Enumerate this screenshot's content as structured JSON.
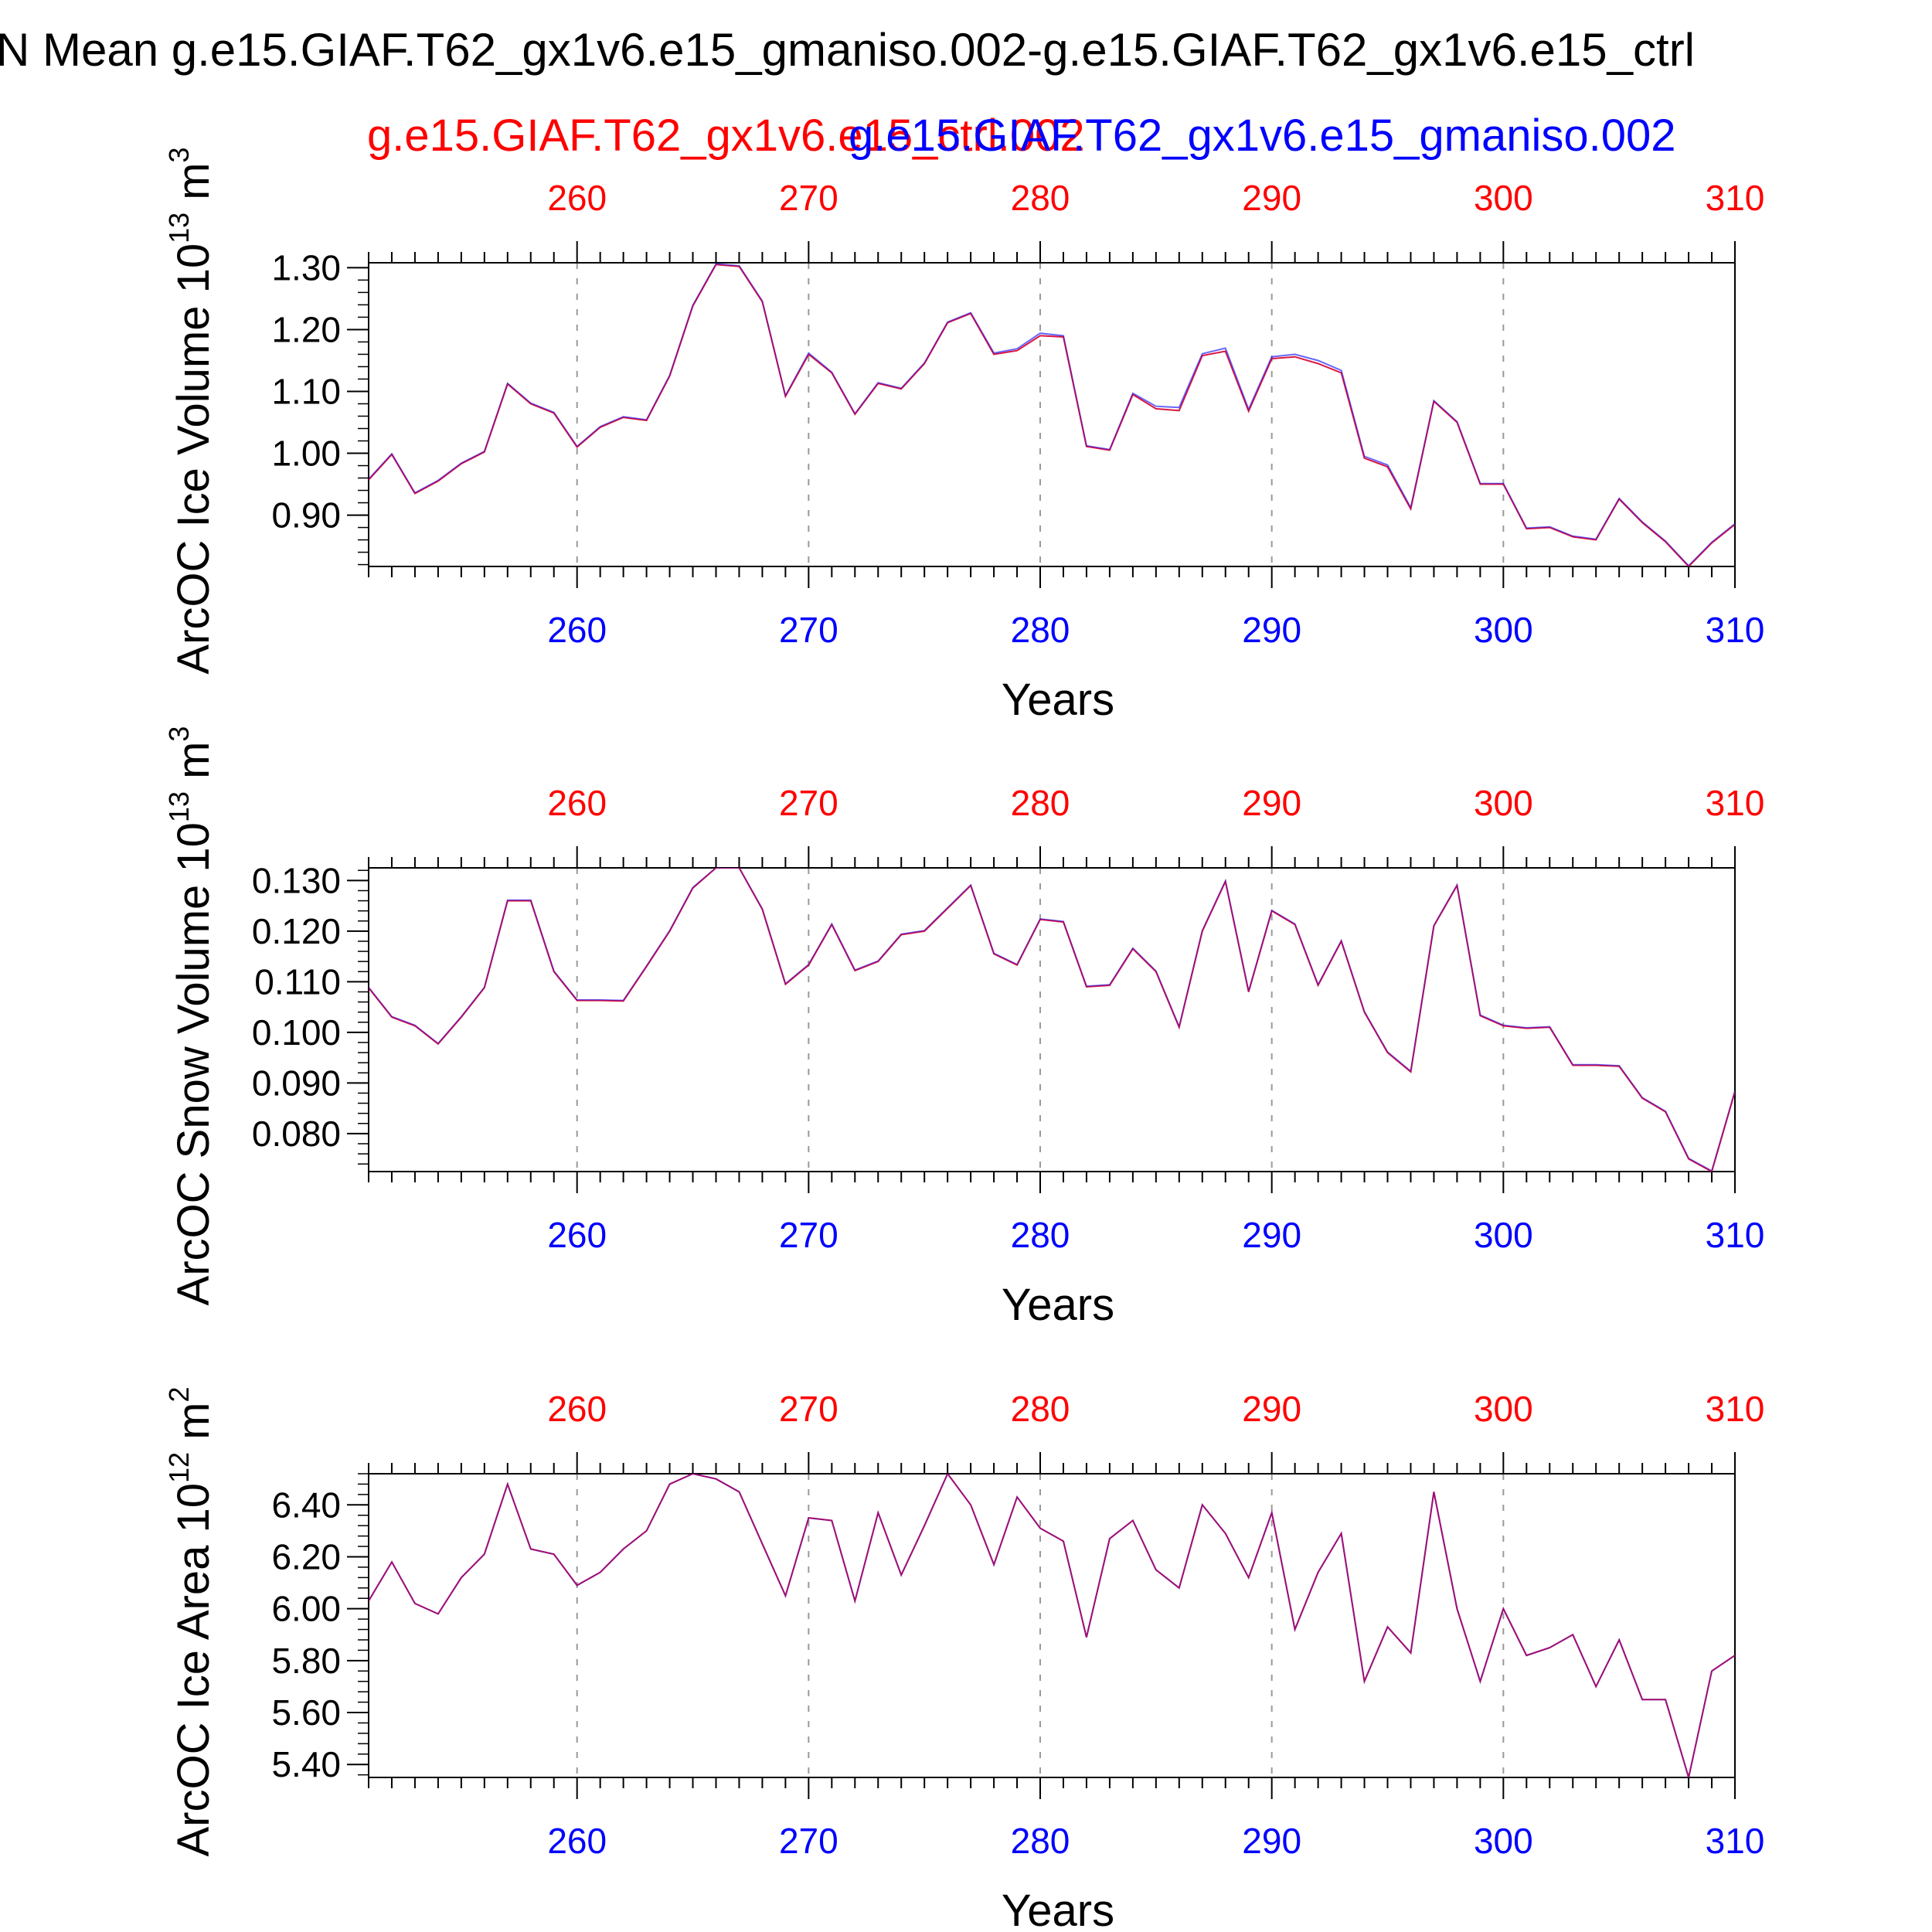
{
  "page_title": "N Mean g.e15.GIAF.T62_gx1v6.e15_gmaniso.002-g.e15.GIAF.T62_gx1v6.e15_ctrl",
  "legend": {
    "left": "g.e15.GIAF.T62_gx1v6.e15_ctrl.002",
    "right": "g.e15.GIAF.T62_gx1v6.e15_gmaniso.002"
  },
  "colors": {
    "ctrl": "#ff0000",
    "gmaniso": "#0000ff",
    "line": "#c0105a",
    "axis": "#000000",
    "grid": "#999999"
  },
  "chart_data": [
    {
      "type": "line",
      "name": "ice-volume",
      "ylabel_main": "ArcOC Ice Volume 10",
      "ylabel_exp": "13",
      "ylabel_unit": " m",
      "ylabel_unit_exp": "3",
      "xlabel": "Years",
      "xlim": [
        251,
        310
      ],
      "ylim": [
        0.817,
        1.308
      ],
      "yticks": [
        0.9,
        1.0,
        1.1,
        1.2,
        1.3
      ],
      "ytick_labels": [
        "0.90",
        "1.00",
        "1.10",
        "1.20",
        "1.30"
      ],
      "xticks": [
        260,
        270,
        280,
        290,
        300,
        310
      ],
      "xtick_labels": [
        "260",
        "270",
        "280",
        "290",
        "300",
        "310"
      ],
      "x": [
        251,
        252,
        253,
        254,
        255,
        256,
        257,
        258,
        259,
        260,
        261,
        262,
        263,
        264,
        265,
        266,
        267,
        268,
        269,
        270,
        271,
        272,
        273,
        274,
        275,
        276,
        277,
        278,
        279,
        280,
        281,
        282,
        283,
        284,
        285,
        286,
        287,
        288,
        289,
        290,
        291,
        292,
        293,
        294,
        295,
        296,
        297,
        298,
        299,
        300,
        301,
        302,
        303,
        304,
        305,
        306,
        307,
        308,
        309,
        310
      ],
      "series": [
        {
          "name": "g.e15.GIAF.T62_gx1v6.e15_ctrl.002",
          "values": [
            0.957,
            0.998,
            0.935,
            0.955,
            0.983,
            1.002,
            1.112,
            1.08,
            1.065,
            1.01,
            1.042,
            1.058,
            1.053,
            1.125,
            1.238,
            1.305,
            1.302,
            1.245,
            1.092,
            1.16,
            1.13,
            1.063,
            1.113,
            1.104,
            1.145,
            1.211,
            1.226,
            1.16,
            1.166,
            1.19,
            1.188,
            1.011,
            1.005,
            1.095,
            1.072,
            1.069,
            1.158,
            1.165,
            1.068,
            1.153,
            1.156,
            1.145,
            1.13,
            0.992,
            0.978,
            0.91,
            1.084,
            1.05,
            0.95,
            0.95,
            0.878,
            0.88,
            0.865,
            0.86,
            0.926,
            0.888,
            0.857,
            0.817,
            0.855,
            0.885
          ]
        },
        {
          "name": "g.e15.GIAF.T62_gx1v6.e15_gmaniso.002",
          "values": [
            0.958,
            0.999,
            0.936,
            0.956,
            0.984,
            1.003,
            1.113,
            1.081,
            1.066,
            1.011,
            1.043,
            1.059,
            1.054,
            1.126,
            1.239,
            1.306,
            1.303,
            1.246,
            1.093,
            1.162,
            1.131,
            1.064,
            1.114,
            1.105,
            1.146,
            1.212,
            1.227,
            1.162,
            1.169,
            1.194,
            1.19,
            1.012,
            1.006,
            1.097,
            1.076,
            1.074,
            1.161,
            1.17,
            1.071,
            1.156,
            1.16,
            1.15,
            1.134,
            0.995,
            0.981,
            0.912,
            1.085,
            1.051,
            0.951,
            0.951,
            0.879,
            0.881,
            0.866,
            0.861,
            0.927,
            0.889,
            0.858,
            0.818,
            0.856,
            0.886
          ]
        }
      ]
    },
    {
      "type": "line",
      "name": "snow-volume",
      "ylabel_main": "ArcOC Snow Volume 10",
      "ylabel_exp": "13",
      "ylabel_unit": " m",
      "ylabel_unit_exp": "3",
      "xlabel": "Years",
      "xlim": [
        251,
        310
      ],
      "ylim": [
        0.0725,
        0.1325
      ],
      "yticks": [
        0.08,
        0.09,
        0.1,
        0.11,
        0.12,
        0.13
      ],
      "ytick_labels": [
        "0.080",
        "0.090",
        "0.100",
        "0.110",
        "0.120",
        "0.130"
      ],
      "xticks": [
        260,
        270,
        280,
        290,
        300,
        310
      ],
      "xtick_labels": [
        "260",
        "270",
        "280",
        "290",
        "300",
        "310"
      ],
      "x": [
        251,
        252,
        253,
        254,
        255,
        256,
        257,
        258,
        259,
        260,
        261,
        262,
        263,
        264,
        265,
        266,
        267,
        268,
        269,
        270,
        271,
        272,
        273,
        274,
        275,
        276,
        277,
        278,
        279,
        280,
        281,
        282,
        283,
        284,
        285,
        286,
        287,
        288,
        289,
        290,
        291,
        292,
        293,
        294,
        295,
        296,
        297,
        298,
        299,
        300,
        301,
        302,
        303,
        304,
        305,
        306,
        307,
        308,
        309,
        310
      ],
      "series": [
        {
          "name": "g.e15.GIAF.T62_gx1v6.e15_ctrl.002",
          "values": [
            0.1088,
            0.103,
            0.1013,
            0.0977,
            0.103,
            0.1088,
            0.126,
            0.126,
            0.112,
            0.1063,
            0.1063,
            0.1062,
            0.113,
            0.12,
            0.1285,
            0.1325,
            0.1325,
            0.1243,
            0.1095,
            0.1133,
            0.1213,
            0.1122,
            0.114,
            0.1193,
            0.12,
            0.1245,
            0.129,
            0.1155,
            0.1133,
            0.1223,
            0.1218,
            0.109,
            0.1093,
            0.1165,
            0.112,
            0.101,
            0.12,
            0.1298,
            0.108,
            0.124,
            0.1213,
            0.1093,
            0.118,
            0.104,
            0.096,
            0.0922,
            0.121,
            0.129,
            0.1033,
            0.1013,
            0.1008,
            0.101,
            0.0935,
            0.0935,
            0.0933,
            0.087,
            0.0843,
            0.075,
            0.0725,
            0.0883
          ]
        },
        {
          "name": "g.e15.GIAF.T62_gx1v6.e15_gmaniso.002",
          "values": [
            0.1089,
            0.1031,
            0.1014,
            0.0978,
            0.1031,
            0.1089,
            0.1261,
            0.1261,
            0.1121,
            0.1064,
            0.1064,
            0.1063,
            0.1131,
            0.1201,
            0.1286,
            0.1325,
            0.1325,
            0.1244,
            0.1096,
            0.1134,
            0.1214,
            0.1123,
            0.1141,
            0.1194,
            0.1201,
            0.1246,
            0.1291,
            0.1156,
            0.1134,
            0.1224,
            0.1219,
            0.1091,
            0.1094,
            0.1166,
            0.1121,
            0.1011,
            0.1201,
            0.1299,
            0.1081,
            0.1241,
            0.1214,
            0.1094,
            0.1181,
            0.1041,
            0.0961,
            0.0923,
            0.1211,
            0.1291,
            0.1034,
            0.1014,
            0.1009,
            0.1011,
            0.0936,
            0.0936,
            0.0934,
            0.0871,
            0.0844,
            0.0751,
            0.0726,
            0.0884
          ]
        }
      ]
    },
    {
      "type": "line",
      "name": "ice-area",
      "ylabel_main": "ArcOC Ice Area 10",
      "ylabel_exp": "12",
      "ylabel_unit": " m",
      "ylabel_unit_exp": "2",
      "xlabel": "Years",
      "xlim": [
        251,
        310
      ],
      "ylim": [
        5.35,
        6.52
      ],
      "yticks": [
        5.4,
        5.6,
        5.8,
        6.0,
        6.2,
        6.4
      ],
      "ytick_labels": [
        "5.40",
        "5.60",
        "5.80",
        "6.00",
        "6.20",
        "6.40"
      ],
      "xticks": [
        260,
        270,
        280,
        290,
        300,
        310
      ],
      "xtick_labels": [
        "260",
        "270",
        "280",
        "290",
        "300",
        "310"
      ],
      "x": [
        251,
        252,
        253,
        254,
        255,
        256,
        257,
        258,
        259,
        260,
        261,
        262,
        263,
        264,
        265,
        266,
        267,
        268,
        269,
        270,
        271,
        272,
        273,
        274,
        275,
        276,
        277,
        278,
        279,
        280,
        281,
        282,
        283,
        284,
        285,
        286,
        287,
        288,
        289,
        290,
        291,
        292,
        293,
        294,
        295,
        296,
        297,
        298,
        299,
        300,
        301,
        302,
        303,
        304,
        305,
        306,
        307,
        308,
        309,
        310
      ],
      "series": [
        {
          "name": "g.e15.GIAF.T62_gx1v6.e15_ctrl.002",
          "values": [
            6.03,
            6.18,
            6.02,
            5.98,
            6.12,
            6.21,
            6.48,
            6.23,
            6.21,
            6.09,
            6.14,
            6.23,
            6.3,
            6.48,
            6.52,
            6.5,
            6.45,
            6.25,
            6.05,
            6.35,
            6.34,
            6.03,
            6.37,
            6.13,
            6.32,
            6.52,
            6.4,
            6.17,
            6.43,
            6.31,
            6.26,
            5.89,
            6.27,
            6.34,
            6.15,
            6.08,
            6.4,
            6.29,
            6.12,
            6.37,
            5.92,
            6.14,
            6.29,
            5.72,
            5.93,
            5.83,
            6.45,
            6.0,
            5.72,
            6.0,
            5.82,
            5.85,
            5.9,
            5.7,
            5.88,
            5.65,
            5.65,
            5.35,
            5.76,
            5.82
          ]
        },
        {
          "name": "g.e15.GIAF.T62_gx1v6.e15_gmaniso.002",
          "values": [
            6.03,
            6.18,
            6.02,
            5.98,
            6.12,
            6.21,
            6.48,
            6.23,
            6.21,
            6.09,
            6.14,
            6.23,
            6.3,
            6.48,
            6.52,
            6.5,
            6.45,
            6.25,
            6.05,
            6.35,
            6.34,
            6.03,
            6.37,
            6.13,
            6.32,
            6.52,
            6.4,
            6.17,
            6.43,
            6.31,
            6.26,
            5.89,
            6.27,
            6.34,
            6.15,
            6.08,
            6.4,
            6.29,
            6.12,
            6.37,
            5.92,
            6.14,
            6.29,
            5.72,
            5.93,
            5.83,
            6.45,
            6.0,
            5.72,
            6.0,
            5.82,
            5.85,
            5.9,
            5.7,
            5.88,
            5.65,
            5.65,
            5.35,
            5.76,
            5.82
          ]
        }
      ]
    }
  ]
}
